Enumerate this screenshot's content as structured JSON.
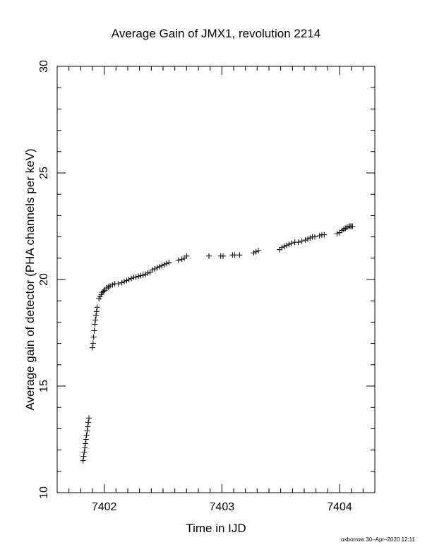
{
  "chart_data": {
    "type": "scatter",
    "title": "Average Gain of JMX1, revolution 2214",
    "xlabel": "Time in IJD",
    "ylabel": "Average gain of detector (PHA channels per keV)",
    "xlim": [
      7401.6,
      7404.3
    ],
    "ylim": [
      10,
      30
    ],
    "xticks": [
      7402,
      7403,
      7404
    ],
    "yticks": [
      10,
      15,
      20,
      25,
      30
    ],
    "xtick_labels": [
      "7402",
      "7403",
      "7404"
    ],
    "ytick_labels": [
      "10",
      "15",
      "20",
      "25",
      "30"
    ],
    "marker": "plus",
    "grid": false,
    "legend": "none",
    "points": [
      [
        7401.82,
        11.5
      ],
      [
        7401.825,
        11.7
      ],
      [
        7401.83,
        11.9
      ],
      [
        7401.835,
        12.1
      ],
      [
        7401.84,
        12.3
      ],
      [
        7401.845,
        12.5
      ],
      [
        7401.85,
        12.7
      ],
      [
        7401.855,
        12.9
      ],
      [
        7401.86,
        13.1
      ],
      [
        7401.865,
        13.3
      ],
      [
        7401.87,
        13.5
      ],
      [
        7401.9,
        16.8
      ],
      [
        7401.905,
        17.0
      ],
      [
        7401.91,
        17.3
      ],
      [
        7401.915,
        17.6
      ],
      [
        7401.92,
        17.9
      ],
      [
        7401.925,
        18.1
      ],
      [
        7401.93,
        18.3
      ],
      [
        7401.935,
        18.5
      ],
      [
        7401.94,
        18.7
      ],
      [
        7401.955,
        19.1
      ],
      [
        7401.965,
        19.2
      ],
      [
        7401.975,
        19.3
      ],
      [
        7401.985,
        19.4
      ],
      [
        7401.995,
        19.45
      ],
      [
        7402.005,
        19.5
      ],
      [
        7402.02,
        19.6
      ],
      [
        7402.035,
        19.65
      ],
      [
        7402.05,
        19.7
      ],
      [
        7402.07,
        19.75
      ],
      [
        7402.09,
        19.8
      ],
      [
        7402.12,
        19.8
      ],
      [
        7402.15,
        19.85
      ],
      [
        7402.17,
        19.9
      ],
      [
        7402.19,
        19.95
      ],
      [
        7402.21,
        20.0
      ],
      [
        7402.23,
        20.05
      ],
      [
        7402.25,
        20.1
      ],
      [
        7402.27,
        20.12
      ],
      [
        7402.29,
        20.15
      ],
      [
        7402.31,
        20.18
      ],
      [
        7402.33,
        20.2
      ],
      [
        7402.35,
        20.25
      ],
      [
        7402.37,
        20.3
      ],
      [
        7402.39,
        20.35
      ],
      [
        7402.41,
        20.45
      ],
      [
        7402.43,
        20.5
      ],
      [
        7402.45,
        20.55
      ],
      [
        7402.47,
        20.6
      ],
      [
        7402.49,
        20.65
      ],
      [
        7402.51,
        20.7
      ],
      [
        7402.53,
        20.75
      ],
      [
        7402.55,
        20.8
      ],
      [
        7402.63,
        20.9
      ],
      [
        7402.66,
        20.95
      ],
      [
        7402.68,
        21.0
      ],
      [
        7402.7,
        21.1
      ],
      [
        7402.89,
        21.1
      ],
      [
        7402.99,
        21.1
      ],
      [
        7403.01,
        21.1
      ],
      [
        7403.09,
        21.15
      ],
      [
        7403.11,
        21.15
      ],
      [
        7403.15,
        21.15
      ],
      [
        7403.27,
        21.25
      ],
      [
        7403.29,
        21.3
      ],
      [
        7403.31,
        21.35
      ],
      [
        7403.49,
        21.4
      ],
      [
        7403.51,
        21.5
      ],
      [
        7403.53,
        21.55
      ],
      [
        7403.55,
        21.6
      ],
      [
        7403.57,
        21.65
      ],
      [
        7403.59,
        21.7
      ],
      [
        7403.62,
        21.75
      ],
      [
        7403.65,
        21.75
      ],
      [
        7403.68,
        21.8
      ],
      [
        7403.71,
        21.85
      ],
      [
        7403.73,
        21.9
      ],
      [
        7403.75,
        21.95
      ],
      [
        7403.77,
        22.0
      ],
      [
        7403.79,
        22.0
      ],
      [
        7403.83,
        22.05
      ],
      [
        7403.85,
        22.1
      ],
      [
        7403.87,
        22.1
      ],
      [
        7403.98,
        22.15
      ],
      [
        7404.0,
        22.2
      ],
      [
        7404.02,
        22.3
      ],
      [
        7404.035,
        22.35
      ],
      [
        7404.05,
        22.4
      ],
      [
        7404.065,
        22.45
      ],
      [
        7404.08,
        22.5
      ],
      [
        7404.09,
        22.5
      ],
      [
        7404.1,
        22.5
      ],
      [
        7404.11,
        22.5
      ]
    ]
  },
  "footer": "oxborrow 30–Apr–2020 12:11"
}
